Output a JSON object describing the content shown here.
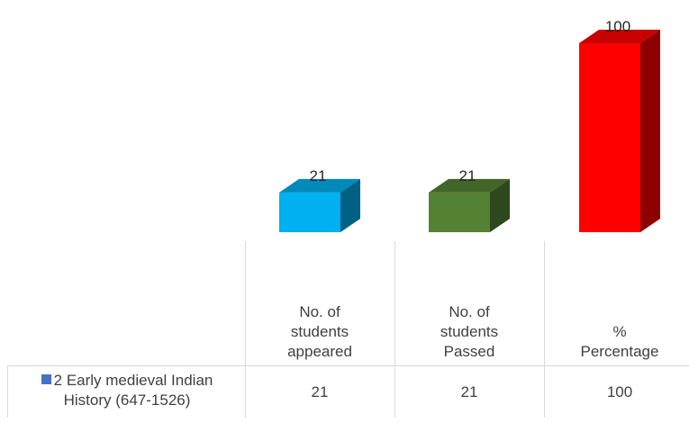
{
  "chart_data": {
    "type": "bar",
    "style": "3d-column-with-data-table",
    "categories": [
      "No. of students appeared",
      "No. of students Passed",
      "% Percentage"
    ],
    "category_lines": [
      [
        "No. of",
        "students",
        "appeared"
      ],
      [
        "No. of",
        "students",
        "Passed"
      ],
      [
        "%",
        "Percentage"
      ]
    ],
    "series": [
      {
        "name": "2 Early medieval Indian History (647-1526)",
        "name_lines": [
          "2 Early medieval Indian",
          "History (647-1526)"
        ],
        "values": [
          21,
          21,
          100
        ],
        "colors": [
          "#00b0f0",
          "#548235",
          "#ff0000"
        ],
        "legend_color": "#4472c4"
      }
    ],
    "ylim": [
      0,
      100
    ],
    "data_labels": [
      "21",
      "21",
      "100"
    ],
    "table_values": [
      "21",
      "21",
      "100"
    ],
    "grid": false,
    "legend": "data-table"
  }
}
